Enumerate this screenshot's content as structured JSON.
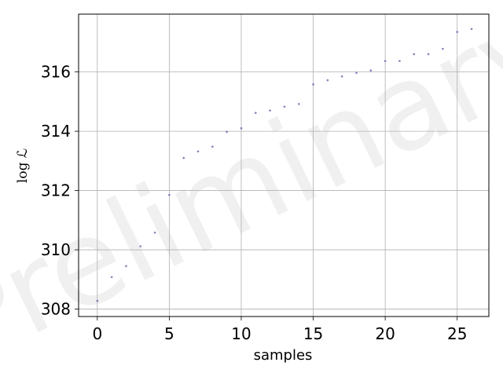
{
  "chart_data": {
    "type": "scatter",
    "xlabel": "samples",
    "ylabel": "log ℒ",
    "watermark": "Preliminary",
    "xlim": [
      -1.3,
      27.2
    ],
    "ylim": [
      307.75,
      317.95
    ],
    "xticks": [
      0,
      5,
      10,
      15,
      20,
      25
    ],
    "yticks": [
      308,
      310,
      312,
      314,
      316
    ],
    "grid": true,
    "marker_color": "#5a5aa8",
    "series": [
      {
        "x": [
          0,
          1,
          2,
          3,
          4,
          5,
          6,
          7,
          8,
          9,
          10,
          11,
          12,
          13,
          14,
          15,
          16,
          17,
          18,
          19,
          20,
          21,
          22,
          23,
          24,
          25,
          26
        ],
        "y": [
          308.28,
          309.08,
          309.45,
          310.12,
          310.58,
          311.85,
          313.1,
          313.32,
          313.48,
          313.98,
          314.1,
          314.62,
          314.7,
          314.83,
          314.92,
          315.58,
          315.72,
          315.85,
          315.97,
          316.05,
          316.37,
          316.37,
          316.6,
          316.6,
          316.78,
          317.35,
          317.45
        ]
      }
    ]
  }
}
